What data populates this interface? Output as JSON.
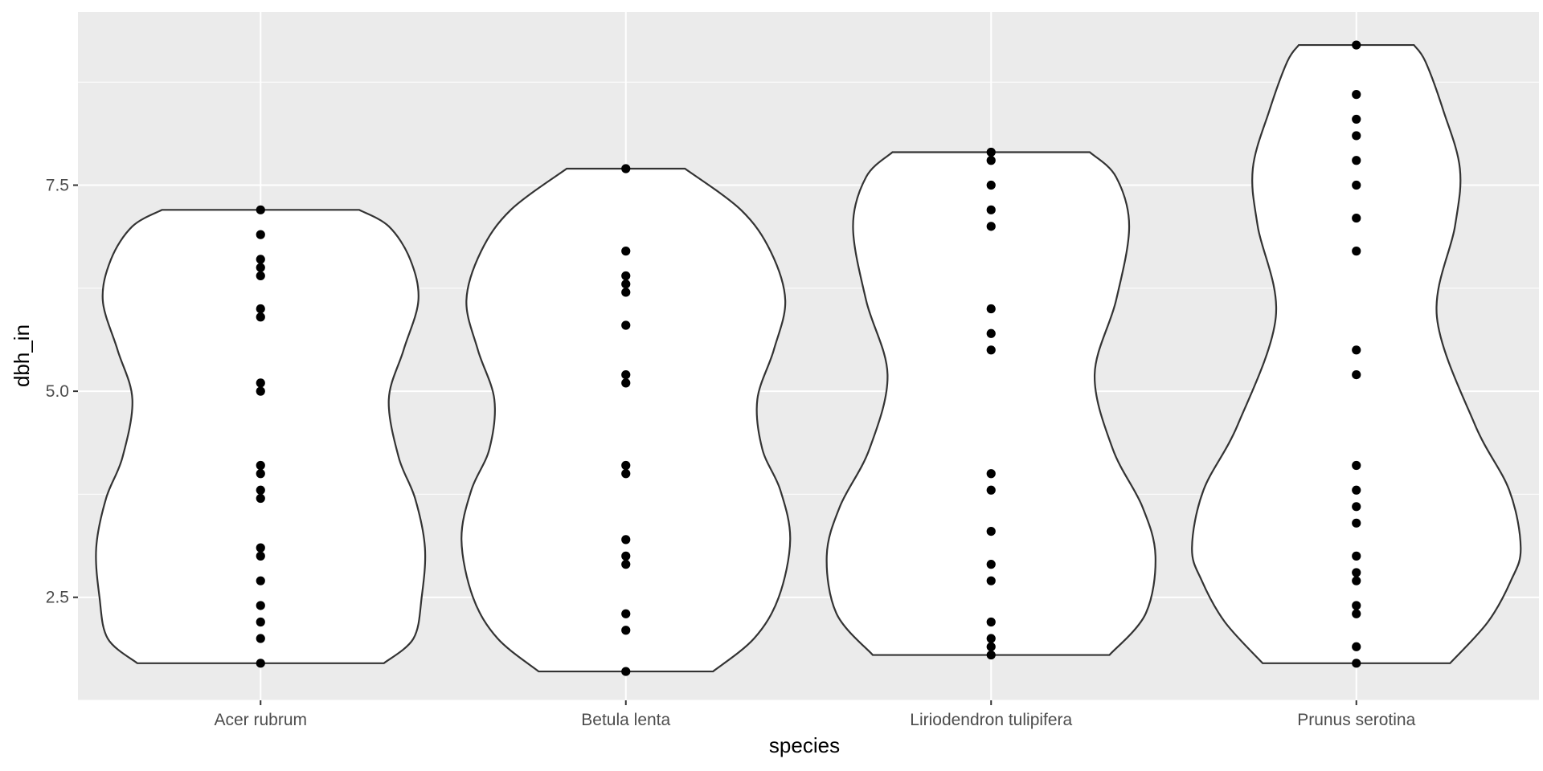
{
  "chart_data": {
    "type": "violin",
    "xlabel": "species",
    "ylabel": "dbh_in",
    "categories": [
      "Acer rubrum",
      "Betula lenta",
      "Liriodendron tulipifera",
      "Prunus serotina"
    ],
    "y_ticks": [
      2.5,
      5.0,
      7.5
    ],
    "y_tick_labels": [
      "2.5",
      "5.0",
      "7.5"
    ],
    "ylim": [
      1.25,
      9.6
    ],
    "grid": true,
    "legend": "none",
    "panel_color": "#ebebeb",
    "violin_fill": "#ffffff",
    "violin_outline": "#333333",
    "point_color": "#000000",
    "series": [
      {
        "category": "Acer rubrum",
        "points": [
          7.2,
          6.9,
          6.6,
          6.5,
          6.4,
          6.0,
          5.9,
          5.1,
          5.0,
          4.1,
          4.0,
          3.8,
          3.7,
          3.1,
          3.0,
          2.7,
          2.4,
          2.2,
          2.0,
          1.7
        ],
        "violin_profile": [
          [
            1.7,
            0.75
          ],
          [
            2.0,
            0.93
          ],
          [
            2.5,
            0.98
          ],
          [
            3.1,
            1.0
          ],
          [
            3.7,
            0.94
          ],
          [
            4.2,
            0.84
          ],
          [
            4.9,
            0.78
          ],
          [
            5.5,
            0.87
          ],
          [
            6.1,
            0.96
          ],
          [
            6.6,
            0.91
          ],
          [
            7.0,
            0.78
          ],
          [
            7.2,
            0.6
          ]
        ]
      },
      {
        "category": "Betula lenta",
        "points": [
          7.7,
          6.7,
          6.4,
          6.3,
          6.2,
          5.8,
          5.2,
          5.1,
          4.1,
          4.0,
          3.2,
          3.0,
          2.9,
          2.3,
          2.1,
          1.6
        ],
        "violin_profile": [
          [
            1.6,
            0.53
          ],
          [
            2.0,
            0.78
          ],
          [
            2.5,
            0.93
          ],
          [
            3.2,
            1.0
          ],
          [
            3.8,
            0.94
          ],
          [
            4.3,
            0.83
          ],
          [
            4.9,
            0.8
          ],
          [
            5.5,
            0.9
          ],
          [
            6.1,
            0.97
          ],
          [
            6.7,
            0.88
          ],
          [
            7.2,
            0.7
          ],
          [
            7.7,
            0.36
          ]
        ]
      },
      {
        "category": "Liriodendron tulipifera",
        "points": [
          7.9,
          7.8,
          7.5,
          7.2,
          7.0,
          6.0,
          5.7,
          5.5,
          4.0,
          3.8,
          3.3,
          2.9,
          2.7,
          2.2,
          2.0,
          1.9,
          1.8
        ],
        "violin_profile": [
          [
            1.8,
            0.72
          ],
          [
            2.3,
            0.94
          ],
          [
            3.0,
            1.0
          ],
          [
            3.6,
            0.92
          ],
          [
            4.3,
            0.74
          ],
          [
            5.2,
            0.63
          ],
          [
            6.1,
            0.76
          ],
          [
            7.0,
            0.84
          ],
          [
            7.6,
            0.76
          ],
          [
            7.9,
            0.6
          ]
        ]
      },
      {
        "category": "Prunus serotina",
        "points": [
          9.2,
          8.6,
          8.3,
          8.1,
          7.8,
          7.5,
          7.1,
          6.7,
          5.5,
          5.2,
          4.1,
          3.8,
          3.6,
          3.4,
          3.0,
          2.8,
          2.7,
          2.4,
          2.3,
          1.9,
          1.7
        ],
        "violin_profile": [
          [
            1.7,
            0.57
          ],
          [
            2.2,
            0.8
          ],
          [
            2.7,
            0.94
          ],
          [
            3.1,
            1.0
          ],
          [
            3.8,
            0.93
          ],
          [
            4.6,
            0.72
          ],
          [
            5.9,
            0.49
          ],
          [
            7.0,
            0.6
          ],
          [
            7.7,
            0.63
          ],
          [
            8.4,
            0.53
          ],
          [
            9.0,
            0.42
          ],
          [
            9.2,
            0.35
          ]
        ]
      }
    ]
  }
}
